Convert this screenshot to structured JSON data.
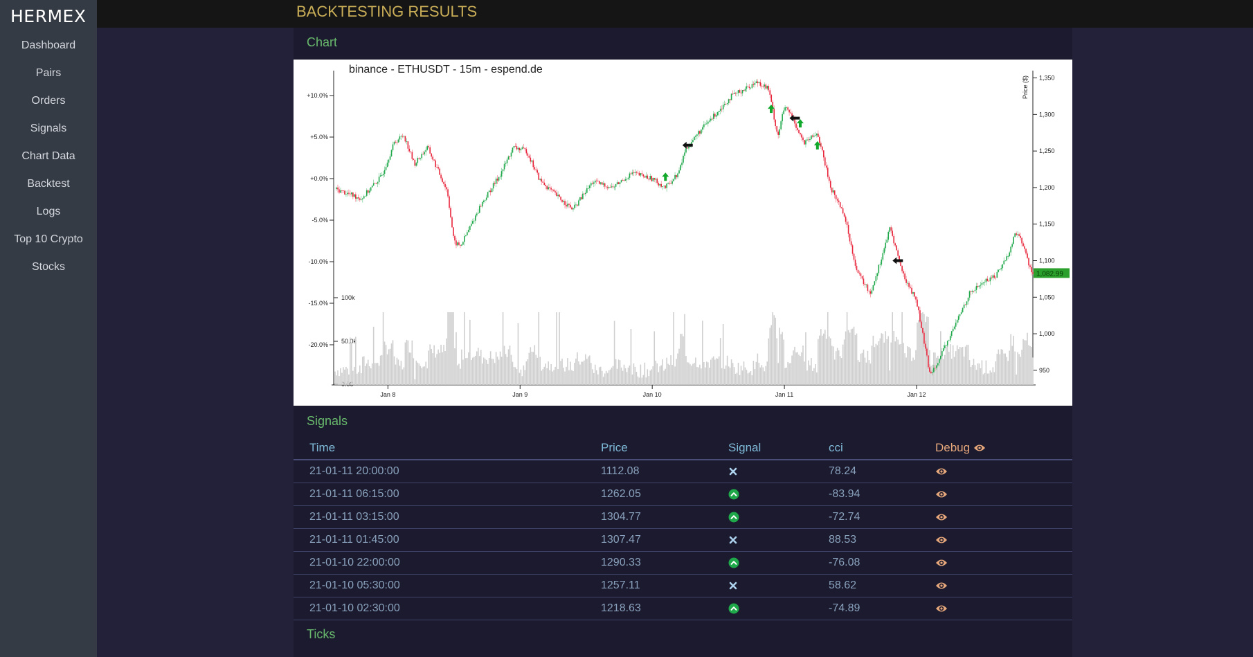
{
  "sidebar": {
    "brand": "HERMEX",
    "items": [
      {
        "label": "Dashboard",
        "name": "sidebar-item-dashboard"
      },
      {
        "label": "Pairs",
        "name": "sidebar-item-pairs"
      },
      {
        "label": "Orders",
        "name": "sidebar-item-orders"
      },
      {
        "label": "Signals",
        "name": "sidebar-item-signals"
      },
      {
        "label": "Chart Data",
        "name": "sidebar-item-chart-data"
      },
      {
        "label": "Backtest",
        "name": "sidebar-item-backtest"
      },
      {
        "label": "Logs",
        "name": "sidebar-item-logs"
      },
      {
        "label": "Top 10 Crypto",
        "name": "sidebar-item-top-10-crypto"
      },
      {
        "label": "Stocks",
        "name": "sidebar-item-stocks"
      }
    ]
  },
  "header": {
    "title": "BACKTESTING RESULTS"
  },
  "sections": {
    "chart": "Chart",
    "signals": "Signals",
    "ticks": "Ticks"
  },
  "chart_data": {
    "type": "candlestick",
    "title": "binance - ETHUSDT - 15m - espend.de",
    "ylabel": "Price ($)",
    "y_right_ticks": [
      "1,350",
      "1,300",
      "1,250",
      "1,200",
      "1,150",
      "1,100",
      "1,050",
      "1,000",
      "950"
    ],
    "y_right_values": [
      1350,
      1300,
      1250,
      1200,
      1150,
      1100,
      1050,
      1000,
      950
    ],
    "ylim": [
      930,
      1360
    ],
    "y_left_ticks": [
      "+10.0%",
      "+5.0%",
      "+0.0%",
      "-5.0%",
      "-10.0%",
      "-15.0%",
      "-20.0%"
    ],
    "volume_ticks": [
      "100k",
      "50.0k",
      "0.00"
    ],
    "x_ticks": [
      "Jan 8",
      "Jan 9",
      "Jan 10",
      "Jan 11",
      "Jan 12"
    ],
    "last_price_label": "1,082.99",
    "last_price": 1082.99,
    "price_path": [
      [
        7.6,
        1198
      ],
      [
        7.8,
        1185
      ],
      [
        7.95,
        1215
      ],
      [
        8.05,
        1262
      ],
      [
        8.12,
        1272
      ],
      [
        8.2,
        1232
      ],
      [
        8.3,
        1255
      ],
      [
        8.45,
        1195
      ],
      [
        8.5,
        1125
      ],
      [
        8.55,
        1120
      ],
      [
        8.7,
        1175
      ],
      [
        8.85,
        1218
      ],
      [
        8.95,
        1255
      ],
      [
        9.05,
        1250
      ],
      [
        9.15,
        1210
      ],
      [
        9.3,
        1185
      ],
      [
        9.4,
        1170
      ],
      [
        9.55,
        1208
      ],
      [
        9.7,
        1200
      ],
      [
        9.85,
        1220
      ],
      [
        10.0,
        1212
      ],
      [
        10.1,
        1200
      ],
      [
        10.2,
        1220
      ],
      [
        10.25,
        1252
      ],
      [
        10.35,
        1275
      ],
      [
        10.45,
        1295
      ],
      [
        10.6,
        1325
      ],
      [
        10.7,
        1335
      ],
      [
        10.8,
        1345
      ],
      [
        10.88,
        1335
      ],
      [
        10.95,
        1270
      ],
      [
        11.0,
        1310
      ],
      [
        11.05,
        1300
      ],
      [
        11.15,
        1260
      ],
      [
        11.25,
        1275
      ],
      [
        11.35,
        1200
      ],
      [
        11.45,
        1165
      ],
      [
        11.55,
        1085
      ],
      [
        11.65,
        1055
      ],
      [
        11.72,
        1095
      ],
      [
        11.8,
        1145
      ],
      [
        11.9,
        1080
      ],
      [
        12.0,
        1045
      ],
      [
        12.05,
        995
      ],
      [
        12.1,
        945
      ],
      [
        12.18,
        968
      ],
      [
        12.3,
        1015
      ],
      [
        12.4,
        1055
      ],
      [
        12.5,
        1070
      ],
      [
        12.6,
        1080
      ],
      [
        12.7,
        1110
      ],
      [
        12.75,
        1140
      ],
      [
        12.8,
        1125
      ],
      [
        12.85,
        1095
      ],
      [
        12.88,
        1083
      ]
    ],
    "markers": [
      {
        "type": "buy",
        "x": 10.1,
        "price": 1212
      },
      {
        "type": "exit",
        "x": 10.27,
        "price": 1258
      },
      {
        "type": "buy",
        "x": 10.9,
        "price": 1305
      },
      {
        "type": "exit",
        "x": 11.08,
        "price": 1295
      },
      {
        "type": "buy",
        "x": 11.12,
        "price": 1285
      },
      {
        "type": "buy",
        "x": 11.25,
        "price": 1255
      },
      {
        "type": "exit",
        "x": 11.86,
        "price": 1100
      }
    ]
  },
  "signals_table": {
    "headers": {
      "time": "Time",
      "price": "Price",
      "signal": "Signal",
      "cci": "cci",
      "debug": "Debug"
    },
    "rows": [
      {
        "time": "21-01-11 20:00:00",
        "price": "1112.08",
        "signal": "close",
        "cci": "78.24"
      },
      {
        "time": "21-01-11 06:15:00",
        "price": "1262.05",
        "signal": "up",
        "cci": "-83.94"
      },
      {
        "time": "21-01-11 03:15:00",
        "price": "1304.77",
        "signal": "up",
        "cci": "-72.74"
      },
      {
        "time": "21-01-11 01:45:00",
        "price": "1307.47",
        "signal": "close",
        "cci": "88.53"
      },
      {
        "time": "21-01-10 22:00:00",
        "price": "1290.33",
        "signal": "up",
        "cci": "-76.08"
      },
      {
        "time": "21-01-10 05:30:00",
        "price": "1257.11",
        "signal": "close",
        "cci": "58.62"
      },
      {
        "time": "21-01-10 02:30:00",
        "price": "1218.63",
        "signal": "up",
        "cci": "-74.89"
      }
    ]
  },
  "colors": {
    "accent": "#c9ae57",
    "section": "#69b96d",
    "up": "#1fa84a",
    "down": "#e8243a",
    "last_price_bg": "#2ca02c"
  },
  "icons": {
    "debug": "eye-icon",
    "close_signal": "close-icon",
    "up_signal": "chevron-up-circle-icon"
  }
}
